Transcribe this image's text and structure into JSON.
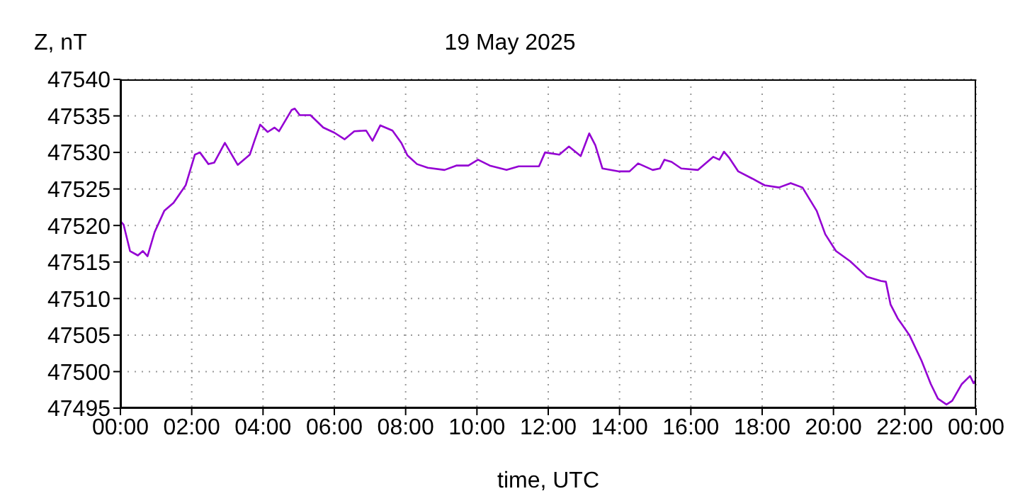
{
  "chart_data": {
    "type": "line",
    "title": "19 May 2025",
    "xlabel": "time, UTC",
    "ylabel": "Z, nT",
    "x": [
      0,
      0.09,
      0.27,
      0.49,
      0.63,
      0.76,
      0.96,
      1.23,
      1.49,
      1.83,
      2.09,
      2.23,
      2.47,
      2.63,
      2.93,
      3.29,
      3.63,
      3.76,
      3.92,
      4.13,
      4.32,
      4.45,
      4.8,
      4.89,
      5.03,
      5.33,
      5.69,
      6.0,
      6.29,
      6.56,
      6.89,
      7.07,
      7.29,
      7.63,
      7.88,
      8.05,
      8.32,
      8.62,
      9.09,
      9.42,
      9.76,
      10.03,
      10.36,
      10.83,
      11.17,
      11.74,
      11.91,
      12.31,
      12.58,
      12.91,
      13.15,
      13.32,
      13.52,
      13.99,
      14.28,
      14.52,
      14.93,
      15.13,
      15.26,
      15.46,
      15.73,
      16.2,
      16.63,
      16.8,
      16.93,
      17.07,
      17.33,
      17.73,
      18.07,
      18.47,
      18.8,
      19.13,
      19.53,
      19.77,
      20.07,
      20.47,
      20.93,
      21.33,
      21.47,
      21.6,
      21.8,
      22.13,
      22.47,
      22.73,
      22.93,
      23.17,
      23.33,
      23.6,
      23.83,
      23.93,
      24.0
    ],
    "series": [
      {
        "color": "#9400d3",
        "values": [
          47520.6,
          47520.1,
          47516.5,
          47515.9,
          47516.5,
          47515.8,
          47519.1,
          47522.0,
          47523.1,
          47525.5,
          47529.7,
          47530.0,
          47528.4,
          47528.6,
          47531.3,
          47528.3,
          47529.7,
          47531.6,
          47533.8,
          47532.8,
          47533.4,
          47532.9,
          47535.8,
          47536.0,
          47535.1,
          47535.1,
          47533.4,
          47532.7,
          47531.8,
          47532.9,
          47533.0,
          47531.6,
          47533.7,
          47533.0,
          47531.3,
          47529.6,
          47528.4,
          47527.9,
          47527.6,
          47528.2,
          47528.2,
          47529.0,
          47528.2,
          47527.6,
          47528.1,
          47528.1,
          47530.0,
          47529.7,
          47530.8,
          47529.5,
          47532.6,
          47531.0,
          47527.8,
          47527.4,
          47527.4,
          47528.5,
          47527.6,
          47527.8,
          47529.0,
          47528.7,
          47527.8,
          47527.6,
          47529.4,
          47529.0,
          47530.1,
          47529.3,
          47527.4,
          47526.4,
          47525.5,
          47525.2,
          47525.8,
          47525.2,
          47522.0,
          47518.8,
          47516.5,
          47515.1,
          47513.0,
          47512.4,
          47512.3,
          47509.2,
          47507.3,
          47505.0,
          47501.5,
          47498.3,
          47496.3,
          47495.5,
          47496.0,
          47498.3,
          47499.4,
          47498.4,
          47498.9
        ]
      }
    ],
    "xlim": [
      0,
      24
    ],
    "xticks": [
      {
        "value": 0,
        "label": "00:00"
      },
      {
        "value": 2,
        "label": "02:00"
      },
      {
        "value": 4,
        "label": "04:00"
      },
      {
        "value": 6,
        "label": "06:00"
      },
      {
        "value": 8,
        "label": "08:00"
      },
      {
        "value": 10,
        "label": "10:00"
      },
      {
        "value": 12,
        "label": "12:00"
      },
      {
        "value": 14,
        "label": "14:00"
      },
      {
        "value": 16,
        "label": "16:00"
      },
      {
        "value": 18,
        "label": "18:00"
      },
      {
        "value": 20,
        "label": "20:00"
      },
      {
        "value": 22,
        "label": "22:00"
      },
      {
        "value": 24,
        "label": "00:00"
      }
    ],
    "ylim": [
      47495,
      47540
    ],
    "yticks": [
      47495,
      47500,
      47505,
      47510,
      47515,
      47520,
      47525,
      47530,
      47535,
      47540
    ],
    "grid": true,
    "legend": false,
    "marker": "none",
    "line_style": "solid"
  }
}
